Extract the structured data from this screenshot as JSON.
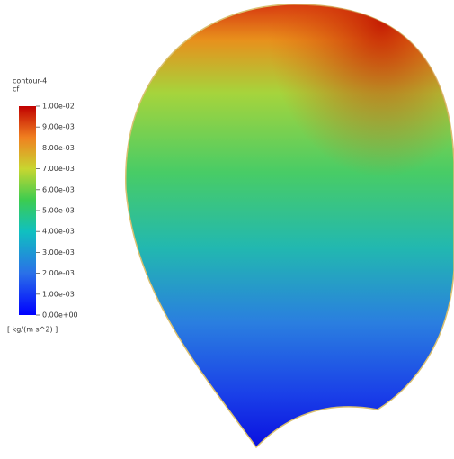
{
  "legend": {
    "title": "contour-4",
    "variable": "cf",
    "units": "[ kg/(m s^2) ]",
    "range": [
      0,
      0.01
    ],
    "ticks": [
      {
        "value": 0.01,
        "label": "1.00e-02"
      },
      {
        "value": 0.009,
        "label": "9.00e-03"
      },
      {
        "value": 0.008,
        "label": "8.00e-03"
      },
      {
        "value": 0.007,
        "label": "7.00e-03"
      },
      {
        "value": 0.006,
        "label": "6.00e-03"
      },
      {
        "value": 0.005,
        "label": "5.00e-03"
      },
      {
        "value": 0.004,
        "label": "4.00e-03"
      },
      {
        "value": 0.003,
        "label": "3.00e-03"
      },
      {
        "value": 0.002,
        "label": "2.00e-03"
      },
      {
        "value": 0.001,
        "label": "1.00e-03"
      },
      {
        "value": 0,
        "label": "0.00e+00"
      }
    ]
  }
}
